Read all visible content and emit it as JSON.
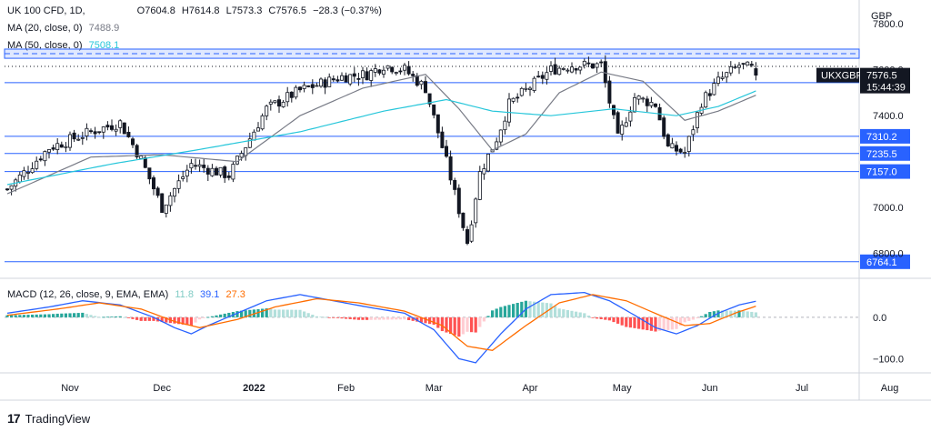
{
  "header": {
    "symbol_line": "UK 100 CFD, 1D,",
    "open": "O7604.8",
    "high": "H7614.8",
    "low": "L7573.3",
    "close": "C7576.5",
    "change": "−28.3 (−0.37%)",
    "ma20_label": "MA (20, close, 0)",
    "ma20_value": "7488.9",
    "ma50_label": "MA (50, close, 0)",
    "ma50_value": "7508.1",
    "macd_label": "MACD (12, 26, close, 9, EMA, EMA)",
    "macd_hist": "11.8",
    "macd_line": "39.1",
    "macd_signal": "27.3",
    "currency": "GBP",
    "brand": "TradingView"
  },
  "colors": {
    "up": "#26a69a",
    "down": "#ef5350",
    "ma20": "#787b86",
    "ma50": "#26c6da",
    "level": "#2962ff",
    "macd": "#2962ff",
    "signal": "#ff6d00",
    "price_badge": "#131722"
  },
  "badges": {
    "symbol": "UKXGBP",
    "price": "7576.5",
    "countdown": "15:44:39"
  },
  "chart_data": {
    "type": "candlestick",
    "price_axis": {
      "ylim": [
        6700,
        7880
      ],
      "ticks": [
        "7800.0",
        "7600.0",
        "7400.0",
        "7000.0",
        "6800.0"
      ],
      "tick_values": [
        7800,
        7600,
        7400,
        7000,
        6800
      ]
    },
    "macd_axis": {
      "ylim": [
        -130,
        90
      ],
      "ticks": [
        "0.0",
        "−100.0"
      ],
      "tick_values": [
        0,
        -100
      ]
    },
    "time_axis": {
      "labels": [
        "Nov",
        "Dec",
        "2022",
        "Feb",
        "Mar",
        "Apr",
        "May",
        "Jun",
        "Jul",
        "Aug"
      ],
      "label_bar_index": [
        15,
        37,
        59,
        81,
        102,
        125,
        147,
        168,
        190,
        211
      ]
    },
    "levels": [
      {
        "label": "7543.8",
        "value": 7543.8
      },
      {
        "label": "7310.2",
        "value": 7310.2
      },
      {
        "label": "7235.5",
        "value": 7235.5
      },
      {
        "label": "7157.0",
        "value": 7157.0
      },
      {
        "label": "6764.1",
        "value": 6764.1
      }
    ],
    "resistance_zone": [
      7650,
      7690
    ],
    "keypoints": [
      [
        0,
        7080
      ],
      [
        10,
        7260
      ],
      [
        20,
        7330
      ],
      [
        27,
        7370
      ],
      [
        32,
        7210
      ],
      [
        37,
        7000
      ],
      [
        44,
        7190
      ],
      [
        53,
        7140
      ],
      [
        62,
        7430
      ],
      [
        70,
        7510
      ],
      [
        80,
        7570
      ],
      [
        86,
        7580
      ],
      [
        90,
        7620
      ],
      [
        95,
        7600
      ],
      [
        100,
        7520
      ],
      [
        105,
        7200
      ],
      [
        110,
        6850
      ],
      [
        113,
        7150
      ],
      [
        117,
        7300
      ],
      [
        120,
        7450
      ],
      [
        126,
        7540
      ],
      [
        130,
        7600
      ],
      [
        135,
        7620
      ],
      [
        142,
        7620
      ],
      [
        146,
        7300
      ],
      [
        150,
        7480
      ],
      [
        155,
        7450
      ],
      [
        158,
        7260
      ],
      [
        162,
        7240
      ],
      [
        166,
        7460
      ],
      [
        170,
        7550
      ],
      [
        175,
        7620
      ],
      [
        178,
        7605
      ],
      [
        179,
        7576
      ]
    ],
    "ma20_keypoints": [
      [
        0,
        7060
      ],
      [
        20,
        7220
      ],
      [
        37,
        7230
      ],
      [
        55,
        7200
      ],
      [
        70,
        7400
      ],
      [
        85,
        7520
      ],
      [
        100,
        7580
      ],
      [
        108,
        7430
      ],
      [
        116,
        7250
      ],
      [
        124,
        7320
      ],
      [
        132,
        7500
      ],
      [
        142,
        7590
      ],
      [
        152,
        7550
      ],
      [
        162,
        7380
      ],
      [
        170,
        7420
      ],
      [
        179,
        7489
      ]
    ],
    "ma50_keypoints": [
      [
        0,
        7100
      ],
      [
        25,
        7190
      ],
      [
        45,
        7250
      ],
      [
        70,
        7330
      ],
      [
        90,
        7420
      ],
      [
        105,
        7470
      ],
      [
        116,
        7420
      ],
      [
        130,
        7400
      ],
      [
        145,
        7430
      ],
      [
        160,
        7400
      ],
      [
        170,
        7440
      ],
      [
        179,
        7508
      ]
    ],
    "macd_keypoints": [
      [
        0,
        10
      ],
      [
        10,
        25
      ],
      [
        18,
        40
      ],
      [
        27,
        30
      ],
      [
        35,
        0
      ],
      [
        40,
        -25
      ],
      [
        44,
        -40
      ],
      [
        48,
        -20
      ],
      [
        55,
        10
      ],
      [
        62,
        40
      ],
      [
        70,
        55
      ],
      [
        78,
        40
      ],
      [
        86,
        25
      ],
      [
        95,
        10
      ],
      [
        102,
        -30
      ],
      [
        108,
        -100
      ],
      [
        112,
        -110
      ],
      [
        118,
        -40
      ],
      [
        124,
        20
      ],
      [
        130,
        55
      ],
      [
        138,
        60
      ],
      [
        144,
        40
      ],
      [
        150,
        5
      ],
      [
        155,
        -25
      ],
      [
        160,
        -40
      ],
      [
        165,
        -20
      ],
      [
        170,
        10
      ],
      [
        175,
        30
      ],
      [
        179,
        39
      ]
    ],
    "signal_keypoints": [
      [
        0,
        5
      ],
      [
        12,
        20
      ],
      [
        22,
        35
      ],
      [
        32,
        20
      ],
      [
        40,
        -10
      ],
      [
        46,
        -25
      ],
      [
        55,
        -5
      ],
      [
        64,
        25
      ],
      [
        74,
        45
      ],
      [
        84,
        35
      ],
      [
        95,
        15
      ],
      [
        104,
        -20
      ],
      [
        110,
        -70
      ],
      [
        116,
        -80
      ],
      [
        124,
        -20
      ],
      [
        132,
        35
      ],
      [
        140,
        55
      ],
      [
        148,
        40
      ],
      [
        156,
        5
      ],
      [
        162,
        -20
      ],
      [
        168,
        -15
      ],
      [
        174,
        10
      ],
      [
        179,
        27
      ]
    ],
    "bars": 180
  }
}
